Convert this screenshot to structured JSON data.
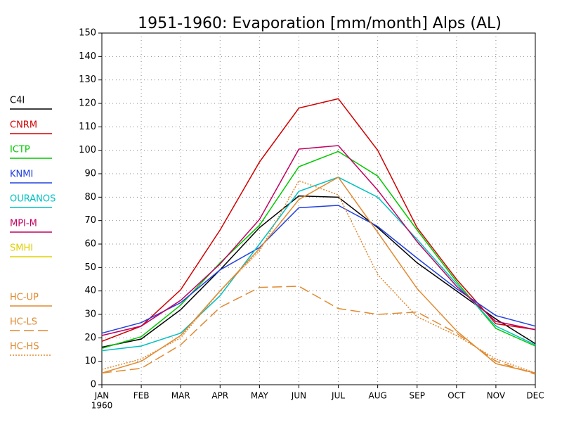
{
  "chart_data": {
    "type": "line",
    "title": "1951-1960: Evaporation [mm/month] Alps (AL)",
    "categories": [
      "JAN",
      "FEB",
      "MAR",
      "APR",
      "MAY",
      "JUN",
      "JUL",
      "AUG",
      "SEP",
      "OCT",
      "NOV",
      "DEC"
    ],
    "year_label": "1960",
    "ylim": [
      0,
      150
    ],
    "yticks": [
      0,
      10,
      20,
      30,
      40,
      50,
      60,
      70,
      80,
      90,
      100,
      110,
      120,
      130,
      140,
      150
    ],
    "grid": true,
    "legend": "left",
    "series": [
      {
        "name": "C4I",
        "color": "#000000",
        "dash": "solid",
        "values": [
          16,
          19.5,
          32,
          49,
          67,
          80.5,
          80,
          67,
          52,
          40,
          28,
          17.5
        ]
      },
      {
        "name": "CNRM",
        "color": "#d00000",
        "dash": "solid",
        "values": [
          18.5,
          25,
          40.5,
          66,
          95,
          118,
          122,
          100,
          67,
          45,
          26,
          23.5
        ]
      },
      {
        "name": "ICTP",
        "color": "#00c800",
        "dash": "solid",
        "values": [
          15.5,
          20.5,
          34,
          52,
          68,
          93,
          99.5,
          89,
          66,
          44,
          24,
          16.5
        ]
      },
      {
        "name": "KNMI",
        "color": "#2040e0",
        "dash": "solid",
        "values": [
          22,
          26.5,
          35,
          49,
          58.5,
          75.5,
          76.5,
          67.5,
          54,
          41,
          29.5,
          25
        ]
      },
      {
        "name": "OURANOS",
        "color": "#00c0c0",
        "dash": "solid",
        "values": [
          14.5,
          16.5,
          22,
          38,
          60,
          82.5,
          88.5,
          80,
          62,
          43,
          25,
          17
        ]
      },
      {
        "name": "MPI-M",
        "color": "#c00060",
        "dash": "solid",
        "values": [
          21,
          25,
          36,
          51.5,
          70.5,
          100.5,
          102,
          83,
          61,
          42,
          27,
          23.5
        ]
      },
      {
        "name": "SMHI",
        "color": "#e0d000",
        "dash": "solid",
        "values": [
          null,
          null,
          null,
          null,
          null,
          null,
          null,
          null,
          null,
          null,
          null,
          null
        ]
      },
      {
        "name": "HC-UP",
        "color": "#e08a30",
        "dash": "solid",
        "values": [
          5,
          10,
          21,
          40,
          58,
          79,
          88.5,
          65,
          41,
          23,
          9,
          5
        ]
      },
      {
        "name": "HC-LS",
        "color": "#e08a30",
        "dash": "dashed",
        "values": [
          5,
          7,
          17,
          33,
          41.5,
          42,
          32.5,
          30,
          31,
          22,
          10,
          4.5
        ]
      },
      {
        "name": "HC-HS",
        "color": "#e08a30",
        "dash": "dotted",
        "values": [
          6.5,
          11,
          20,
          40,
          57,
          87,
          81,
          47,
          29,
          21,
          11,
          5
        ]
      }
    ]
  }
}
